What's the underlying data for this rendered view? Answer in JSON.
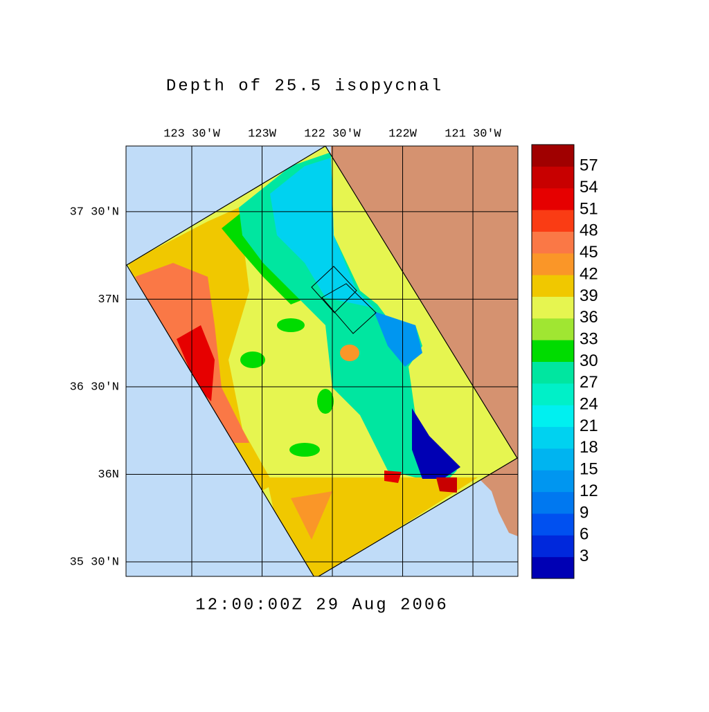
{
  "map": {
    "title": "Depth of 25.5 isopycnal",
    "timestamp": "12:00:00Z  29 Aug 2006",
    "xlim": [
      -123.968,
      -121.18
    ],
    "ylim": [
      35.417,
      37.875
    ],
    "xticks": [
      {
        "value": -123.5,
        "label": "123 30'W"
      },
      {
        "value": -123,
        "label": "123W"
      },
      {
        "value": -122.5,
        "label": "122 30'W"
      },
      {
        "value": -122,
        "label": "122W"
      },
      {
        "value": -121.5,
        "label": "121 30'W"
      }
    ],
    "yticks": [
      {
        "value": 37.5,
        "label": "37 30'N"
      },
      {
        "value": 37,
        "label": "37N"
      },
      {
        "value": 36.5,
        "label": "36 30'N"
      },
      {
        "value": 36,
        "label": "36N"
      },
      {
        "value": 35.5,
        "label": "35 30'N"
      }
    ],
    "colorbar": {
      "clim": [
        0,
        60
      ],
      "levels": [
        3,
        6,
        9,
        12,
        15,
        18,
        21,
        24,
        27,
        30,
        33,
        36,
        39,
        42,
        45,
        48,
        51,
        54,
        57
      ],
      "colors": [
        "#0000b4",
        "#0028dc",
        "#0050f0",
        "#0078f0",
        "#0096f0",
        "#00b4f0",
        "#00d2f0",
        "#00f0f0",
        "#00f0c8",
        "#00e6a0",
        "#00dc00",
        "#a0e632",
        "#e6f550",
        "#f0c800",
        "#fa9628",
        "#fa7846",
        "#fa3c14",
        "#e60000",
        "#c80000",
        "#a00000"
      ]
    }
  }
}
